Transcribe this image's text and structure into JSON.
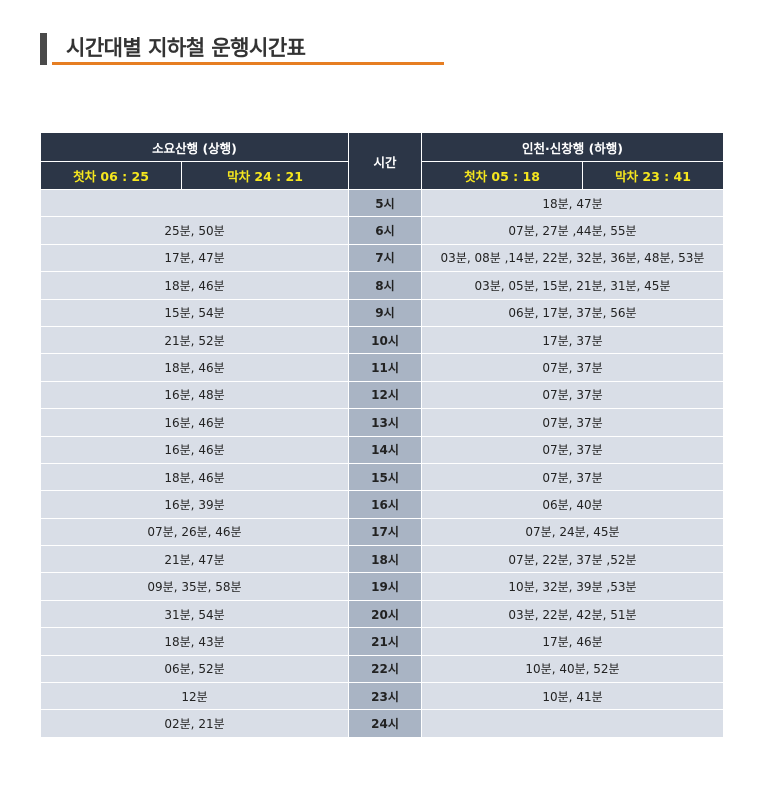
{
  "title": "시간대별 지하철 운행시간표",
  "header": {
    "up_direction": "소요산행 (상행)",
    "time_label": "시간",
    "down_direction": "인천·신창행 (하행)",
    "up_first": "첫차 06 : 25",
    "up_last": "막차 24 : 21",
    "down_first": "첫차 05 : 18",
    "down_last": "막차 23 : 41"
  },
  "rows": [
    {
      "up": "",
      "hour": "5시",
      "down": "18분, 47분"
    },
    {
      "up": "25분, 50분",
      "hour": "6시",
      "down": "07분, 27분 ,44분, 55분"
    },
    {
      "up": "17분, 47분",
      "hour": "7시",
      "down": "03분, 08분 ,14분, 22분, 32분, 36분, 48분, 53분"
    },
    {
      "up": "18분, 46분",
      "hour": "8시",
      "down": "03분, 05분, 15분, 21분, 31분, 45분"
    },
    {
      "up": "15분, 54분",
      "hour": "9시",
      "down": "06분, 17분, 37분, 56분"
    },
    {
      "up": "21분, 52분",
      "hour": "10시",
      "down": "17분, 37분"
    },
    {
      "up": "18분, 46분",
      "hour": "11시",
      "down": "07분, 37분"
    },
    {
      "up": "16분, 48분",
      "hour": "12시",
      "down": "07분, 37분"
    },
    {
      "up": "16분, 46분",
      "hour": "13시",
      "down": "07분, 37분"
    },
    {
      "up": "16분, 46분",
      "hour": "14시",
      "down": "07분, 37분"
    },
    {
      "up": "18분, 46분",
      "hour": "15시",
      "down": "07분, 37분"
    },
    {
      "up": "16분, 39분",
      "hour": "16시",
      "down": "06분, 40분"
    },
    {
      "up": "07분, 26분, 46분",
      "hour": "17시",
      "down": "07분, 24분, 45분"
    },
    {
      "up": "21분, 47분",
      "hour": "18시",
      "down": "07분, 22분, 37분 ,52분"
    },
    {
      "up": "09분, 35분, 58분",
      "hour": "19시",
      "down": "10분, 32분, 39분 ,53분"
    },
    {
      "up": "31분, 54분",
      "hour": "20시",
      "down": "03분, 22분, 42분, 51분"
    },
    {
      "up": "18분, 43분",
      "hour": "21시",
      "down": "17분, 46분"
    },
    {
      "up": "06분, 52분",
      "hour": "22시",
      "down": "10분, 40분, 52분"
    },
    {
      "up": "12분",
      "hour": "23시",
      "down": "10분, 41분"
    },
    {
      "up": "02분, 21분",
      "hour": "24시",
      "down": ""
    }
  ]
}
